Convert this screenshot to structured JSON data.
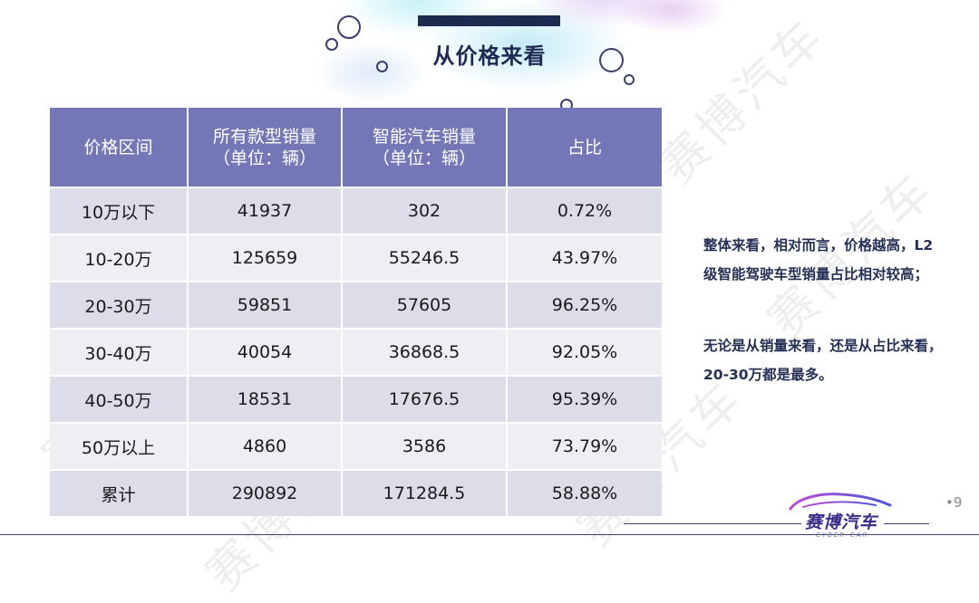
{
  "slide": {
    "title": "从价格来看",
    "page_number": "•9"
  },
  "table": {
    "headers": [
      {
        "line1": "价格区间",
        "line2": ""
      },
      {
        "line1": "所有款型销量",
        "line2": "（单位：辆）"
      },
      {
        "line1": "智能汽车销量",
        "line2": "（单位：辆）"
      },
      {
        "line1": "占比",
        "line2": ""
      }
    ],
    "rows": [
      [
        "10万以下",
        "41937",
        "302",
        "0.72%"
      ],
      [
        "10-20万",
        "125659",
        "55246.5",
        "43.97%"
      ],
      [
        "20-30万",
        "59851",
        "57605",
        "96.25%"
      ],
      [
        "30-40万",
        "40054",
        "36868.5",
        "92.05%"
      ],
      [
        "40-50万",
        "18531",
        "17676.5",
        "95.39%"
      ],
      [
        "50万以上",
        "4860",
        "3586",
        "73.79%"
      ],
      [
        "累计",
        "290892",
        "171284.5",
        "58.88%"
      ]
    ]
  },
  "notes": {
    "note1": "整体来看，相对而言，价格越高，L2级智能驾驶车型销量占比相对较高；",
    "note2": "无论是从销量来看，还是从占比来看，20-30万都是最多。"
  },
  "logo": {
    "name": "赛博汽车",
    "sub": "CYBER-CAR"
  },
  "watermark": "赛博汽车",
  "colors": {
    "header_bg": "#7377b6",
    "row_odd": "#dcdde9",
    "row_even": "#eeeef3",
    "title": "#1f2954",
    "note_text": "#253154"
  }
}
